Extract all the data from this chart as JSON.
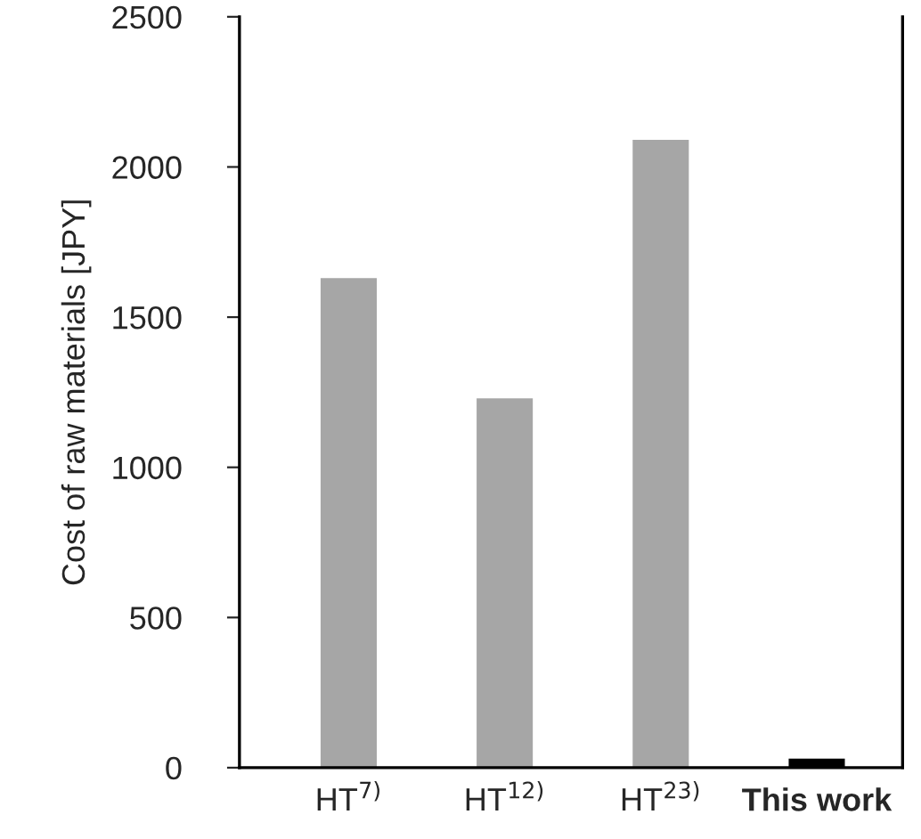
{
  "chart_data": {
    "type": "bar",
    "categories": [
      "HT$^{7)}$",
      "HT$^{12)}$",
      "HT$^{23)}$",
      "This work"
    ],
    "values": [
      1630,
      1230,
      2090,
      30
    ],
    "colors": [
      "#a6a6a6",
      "#a6a6a6",
      "#a6a6a6",
      "#000000"
    ],
    "ylabel": "Cost of raw materials [JPY]",
    "ylim": [
      0,
      2500
    ],
    "yticks": [
      0,
      500,
      1000,
      1500,
      2000,
      2500
    ]
  }
}
